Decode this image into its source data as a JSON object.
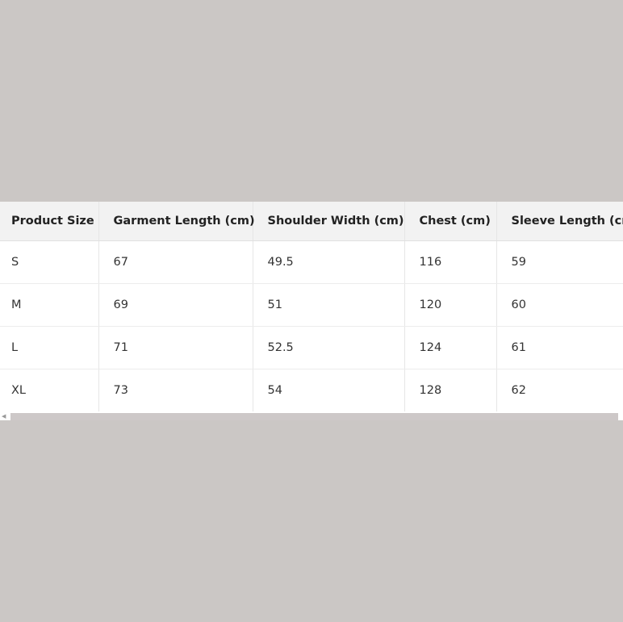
{
  "table": {
    "headers": [
      "Product Size",
      "Garment Length (cm)",
      "Shoulder Width (cm)",
      "Chest (cm)",
      "Sleeve Length (cm)"
    ],
    "rows": [
      [
        "S",
        "67",
        "49.5",
        "116",
        "59"
      ],
      [
        "M",
        "69",
        "51",
        "120",
        "60"
      ],
      [
        "L",
        "71",
        "52.5",
        "124",
        "61"
      ],
      [
        "XL",
        "73",
        "54",
        "128",
        "62"
      ]
    ]
  },
  "scrollbar": {
    "arrow_icon": "chevron-left-icon"
  }
}
